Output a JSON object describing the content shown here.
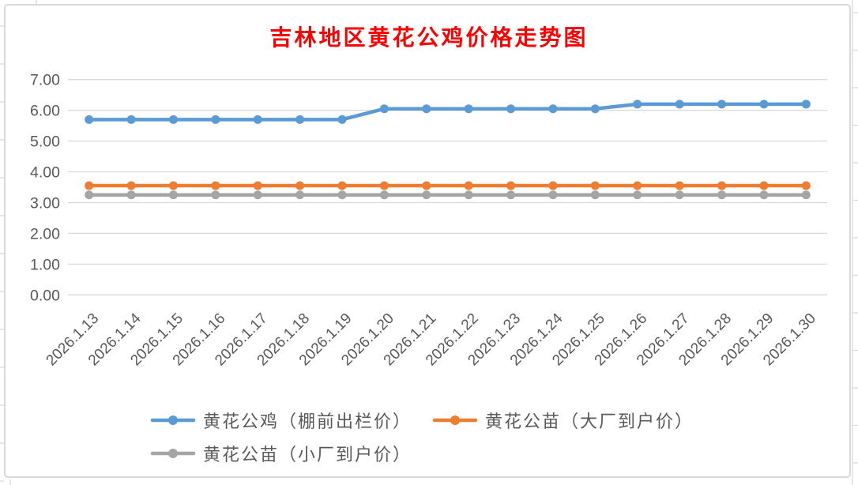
{
  "chart_data": {
    "type": "line",
    "title": "吉林地区黄花公鸡价格走势图",
    "title_color": "#FF0000",
    "categories": [
      "2026.1.13",
      "2026.1.14",
      "2026.1.15",
      "2026.1.16",
      "2026.1.17",
      "2026.1.18",
      "2026.1.19",
      "2026.1.20",
      "2026.1.21",
      "2026.1.22",
      "2026.1.23",
      "2026.1.24",
      "2026.1.25",
      "2026.1.26",
      "2026.1.27",
      "2026.1.28",
      "2026.1.29",
      "2026.1.30"
    ],
    "series": [
      {
        "name": "黄花公鸡（棚前出栏价）",
        "color": "#5B9BD5",
        "values": [
          5.7,
          5.7,
          5.7,
          5.7,
          5.7,
          5.7,
          5.7,
          6.05,
          6.05,
          6.05,
          6.05,
          6.05,
          6.05,
          6.2,
          6.2,
          6.2,
          6.2,
          6.2
        ]
      },
      {
        "name": "黄花公苗（大厂到户价）",
        "color": "#ED7D31",
        "values": [
          3.55,
          3.55,
          3.55,
          3.55,
          3.55,
          3.55,
          3.55,
          3.55,
          3.55,
          3.55,
          3.55,
          3.55,
          3.55,
          3.55,
          3.55,
          3.55,
          3.55,
          3.55
        ]
      },
      {
        "name": "黄花公苗（小厂到户价）",
        "color": "#A5A5A5",
        "values": [
          3.25,
          3.25,
          3.25,
          3.25,
          3.25,
          3.25,
          3.25,
          3.25,
          3.25,
          3.25,
          3.25,
          3.25,
          3.25,
          3.25,
          3.25,
          3.25,
          3.25,
          3.25
        ]
      }
    ],
    "xlabel": "",
    "ylabel": "",
    "ylim": [
      0,
      7
    ],
    "ytick_step": 1,
    "ytick_labels": [
      "0.00",
      "1.00",
      "2.00",
      "3.00",
      "4.00",
      "5.00",
      "6.00",
      "7.00"
    ],
    "grid": true,
    "gridline_color": "#D9D9D9",
    "axis_label_color": "#595959",
    "legend_position": "bottom"
  }
}
